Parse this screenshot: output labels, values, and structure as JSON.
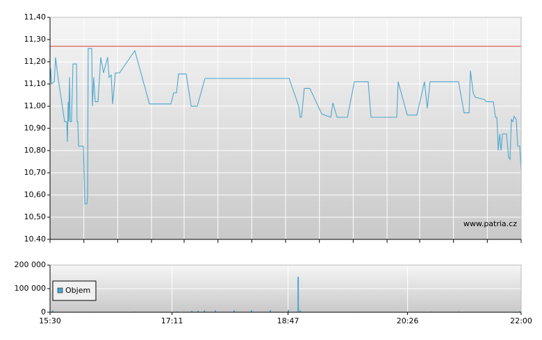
{
  "chart_data": [
    {
      "type": "line",
      "color": "#4ba6cf",
      "x": [
        930,
        930.6,
        931.2,
        933.5,
        934.6,
        936.3,
        942.1,
        943.8,
        944.4,
        945,
        945.5,
        946.1,
        946.7,
        947.8,
        949,
        951.9,
        952.4,
        953,
        953.6,
        954.7,
        956.5,
        957.6,
        958.8,
        960.5,
        961.1,
        961.6,
        964.5,
        965.1,
        966.2,
        967.4,
        969.7,
        972,
        974.3,
        977.7,
        978.9,
        980.6,
        981.8,
        984.1,
        987.5,
        1000.2,
        1012.3,
        1030.1,
        1032.4,
        1034.7,
        1036.4,
        1042.7,
        1046.8,
        1051.9,
        1058.3,
        1127.9,
        1135.9,
        1137.1,
        1138.2,
        1140.5,
        1145.1,
        1154.9,
        1162.4,
        1164.1,
        1167.6,
        1176.2,
        1181.9,
        1193.4,
        1195.7,
        1217,
        1218.2,
        1225.7,
        1233.7,
        1240,
        1242.3,
        1244.6,
        1268.2,
        1272.8,
        1276.9,
        1278,
        1280.3,
        1282,
        1289.5,
        1291.2,
        1297,
        1298.7,
        1299.9,
        1301,
        1302.2,
        1303.3,
        1304.5,
        1307.9,
        1309.6,
        1310.8,
        1311.9,
        1313.1,
        1314.2,
        1316,
        1317.1,
        1318.8,
        1320
      ],
      "values": [
        11.1,
        11.17,
        11.1,
        11.11,
        11.22,
        11.14,
        10.93,
        10.93,
        10.84,
        11.02,
        10.93,
        11.13,
        10.93,
        10.93,
        11.19,
        11.19,
        10.93,
        10.93,
        10.82,
        10.82,
        10.82,
        10.82,
        10.56,
        10.56,
        10.59,
        11.26,
        11.26,
        11.0,
        11.13,
        11.02,
        11.02,
        11.22,
        11.15,
        11.22,
        11.13,
        11.14,
        11.01,
        11.15,
        11.15,
        11.25,
        11.01,
        11.01,
        11.06,
        11.06,
        11.145,
        11.145,
        11.0,
        11.0,
        11.125,
        11.125,
        11.0,
        10.95,
        10.95,
        11.08,
        11.08,
        10.965,
        10.95,
        11.015,
        10.95,
        10.95,
        11.11,
        11.11,
        10.95,
        10.95,
        11.11,
        10.96,
        10.96,
        11.11,
        10.99,
        11.11,
        11.11,
        10.97,
        10.97,
        11.16,
        11.06,
        11.04,
        11.03,
        11.02,
        11.02,
        10.95,
        10.95,
        10.8,
        10.875,
        10.8,
        10.875,
        10.875,
        10.77,
        10.76,
        10.94,
        10.93,
        10.955,
        10.94,
        10.82,
        10.82,
        10.71
      ],
      "xlim": [
        930,
        1320
      ],
      "xminorticks": [
        930,
        958,
        986,
        1014,
        1041,
        1069,
        1097,
        1125,
        1153,
        1181,
        1209,
        1236,
        1264,
        1292,
        1320
      ],
      "ylim": [
        10.4,
        11.4
      ],
      "yticks": [
        {
          "value": 10.4,
          "label": "10.40"
        },
        {
          "value": 10.5,
          "label": "10,50"
        },
        {
          "value": 10.6,
          "label": "10,60"
        },
        {
          "value": 10.7,
          "label": "10,70"
        },
        {
          "value": 10.8,
          "label": "10,80"
        },
        {
          "value": 10.9,
          "label": "10,90"
        },
        {
          "value": 11.0,
          "label": "11,00"
        },
        {
          "value": 11.1,
          "label": "11,10"
        },
        {
          "value": 11.2,
          "label": "11,20"
        },
        {
          "value": 11.3,
          "label": "11,30"
        },
        {
          "value": 11.4,
          "label": "11,40"
        }
      ],
      "reference_line": {
        "value": 11.27,
        "color": "#e0605a"
      },
      "watermark": "www.patria.cz",
      "grid": true
    },
    {
      "type": "bar",
      "x": [
        932.3,
        949.6,
        965.1,
        999.6,
        1035.3,
        1047.4,
        1052.5,
        1057.7,
        1066.9,
        1082.4,
        1096.8,
        1112.3,
        1127.3,
        1135.4,
        1137.1,
        1181.9,
        1219.3,
        1245.2,
        1268.2,
        1318.8
      ],
      "series": [
        {
          "name": "Objem",
          "color": "#4ba6cf",
          "values": [
            8000,
            2000,
            2000,
            3000,
            3000,
            6000,
            6000,
            8000,
            8000,
            9000,
            9000,
            9000,
            10000,
            150000,
            8000,
            2000,
            2000,
            3000,
            3000,
            4000
          ]
        }
      ],
      "xlim": [
        930,
        1320
      ],
      "xticks": [
        {
          "value": 930,
          "label": "15:30"
        },
        {
          "value": 1031,
          "label": "17:11"
        },
        {
          "value": 1127,
          "label": "18:47"
        },
        {
          "value": 1226,
          "label": "20:26"
        },
        {
          "value": 1320,
          "label": "22:00"
        }
      ],
      "ylim": [
        0,
        200000
      ],
      "yticks": [
        0,
        {
          "value": 100000,
          "label": "100 000"
        },
        {
          "value": 200000,
          "label": "200 000"
        }
      ],
      "grid": true
    }
  ]
}
